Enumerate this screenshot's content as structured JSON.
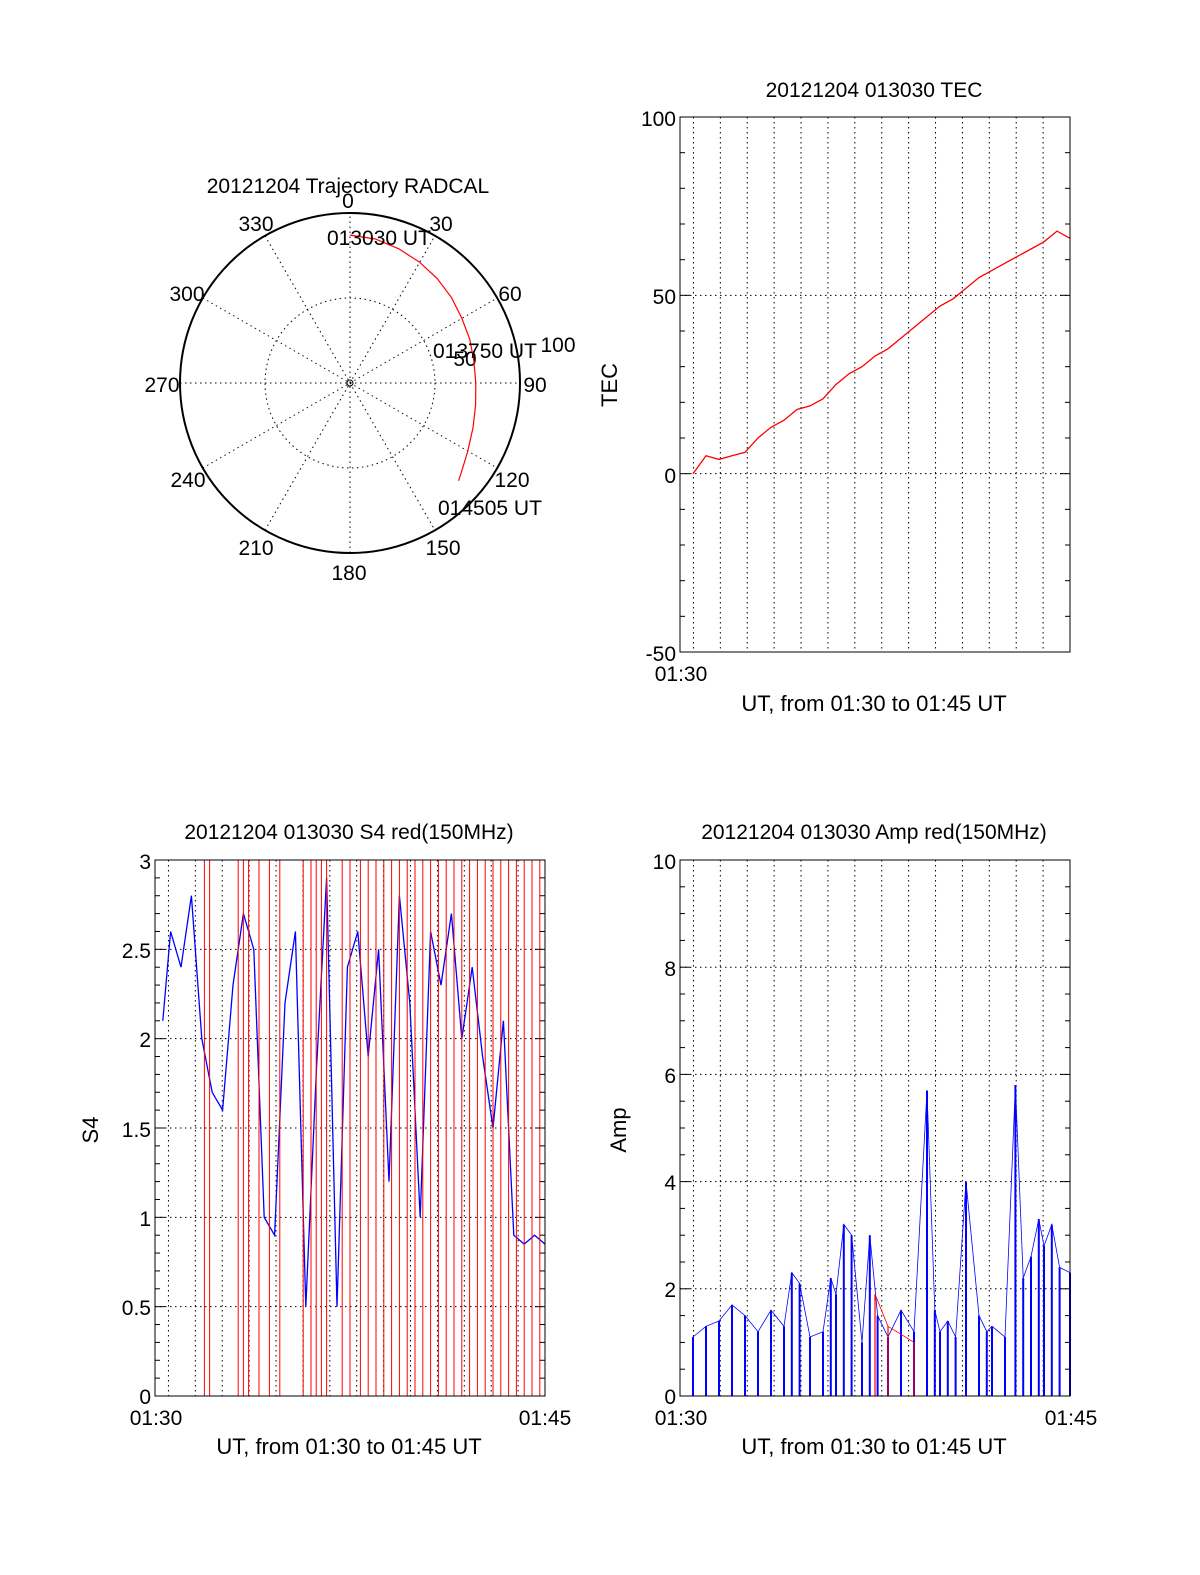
{
  "chart_data": [
    {
      "type": "polar",
      "title": "20121204 Trajectory RADCAL",
      "angle_ticks": [
        "0",
        "30",
        "60",
        "90",
        "120",
        "150",
        "180",
        "210",
        "240",
        "270",
        "300",
        "330"
      ],
      "radial_ticks": [
        "50",
        "100"
      ],
      "rlim": [
        0,
        100
      ],
      "annotations": [
        "013030 UT",
        "013750 UT",
        "014505 UT"
      ],
      "series": [
        {
          "color": "#ff0000",
          "azimuth": [
            0,
            10,
            20,
            30,
            40,
            50,
            60,
            70,
            80,
            90,
            100,
            110,
            120,
            127,
            132
          ],
          "zenith": [
            87,
            86,
            84,
            82,
            80,
            78,
            76,
            75,
            74,
            74,
            75,
            77,
            80,
            83,
            86
          ]
        }
      ]
    },
    {
      "type": "line",
      "title": "20121204 013030 TEC",
      "ylabel": "TEC",
      "xlabel": "UT, from 01:30 to 01:45 UT",
      "xtick_labels": [
        "01:30"
      ],
      "ytick_labels": [
        "-50",
        "0",
        "50",
        "100"
      ],
      "ylim": [
        -50,
        100
      ],
      "xlim_minutes": [
        0,
        15
      ],
      "grid": true,
      "series": [
        {
          "color": "#ff0000",
          "x": [
            0.5,
            1.0,
            1.5,
            2.0,
            2.5,
            3.0,
            3.5,
            4.0,
            4.5,
            5.0,
            5.5,
            6.0,
            6.5,
            7.0,
            7.5,
            8.0,
            8.5,
            9.0,
            9.5,
            10.0,
            10.5,
            11.0,
            11.5,
            12.0,
            12.5,
            13.0,
            13.5,
            14.0,
            14.5,
            15.0
          ],
          "y": [
            0,
            5,
            4,
            5,
            6,
            10,
            13,
            15,
            18,
            19,
            21,
            25,
            28,
            30,
            33,
            35,
            38,
            41,
            44,
            47,
            49,
            52,
            55,
            57,
            59,
            61,
            63,
            65,
            68,
            66
          ]
        }
      ]
    },
    {
      "type": "line",
      "title": "20121204 013030 S4 red(150MHz)",
      "ylabel": "S4",
      "xlabel": "UT, from 01:30 to 01:45 UT",
      "xtick_labels": [
        "01:30",
        "01:45"
      ],
      "ytick_labels": [
        "0",
        "0.5",
        "1",
        "1.5",
        "2",
        "2.5",
        "3"
      ],
      "ylim": [
        0,
        3
      ],
      "xlim_minutes": [
        0,
        15
      ],
      "grid": true,
      "series": [
        {
          "color": "#0000ff",
          "x": [
            0.3,
            0.6,
            1.0,
            1.4,
            1.8,
            2.2,
            2.6,
            3.0,
            3.4,
            3.8,
            4.2,
            4.6,
            5.0,
            5.4,
            5.8,
            6.2,
            6.6,
            7.0,
            7.4,
            7.8,
            8.2,
            8.6,
            9.0,
            9.4,
            9.8,
            10.2,
            10.6,
            11.0,
            11.4,
            11.8,
            12.2,
            12.6,
            13.0,
            13.4,
            13.8,
            14.2,
            14.6,
            15.0
          ],
          "y": [
            2.1,
            2.6,
            2.4,
            2.8,
            2.0,
            1.7,
            1.6,
            2.3,
            2.7,
            2.5,
            1.0,
            0.9,
            2.2,
            2.6,
            0.5,
            1.8,
            2.9,
            0.5,
            2.4,
            2.6,
            1.9,
            2.5,
            1.2,
            2.8,
            2.2,
            1.0,
            2.6,
            2.3,
            2.7,
            2.0,
            2.4,
            1.9,
            1.5,
            2.1,
            0.9,
            0.85,
            0.9,
            0.85
          ]
        },
        {
          "color": "#ff0000",
          "x": [
            1.9,
            2.1,
            3.2,
            3.4,
            3.6,
            4.0,
            4.4,
            4.8,
            5.7,
            6.0,
            6.2,
            6.4,
            6.6,
            7.2,
            7.5,
            7.9,
            8.2,
            8.5,
            8.8,
            9.1,
            9.4,
            9.7,
            10.0,
            10.3,
            10.6,
            10.9,
            11.2,
            11.5,
            11.8,
            12.1,
            12.4,
            12.7,
            13.0,
            13.3,
            13.6,
            13.9,
            14.2,
            14.5,
            14.8,
            15.0
          ],
          "y": [
            3,
            3,
            3,
            3,
            3,
            3,
            3,
            3,
            3,
            3,
            3,
            3,
            3,
            3,
            3,
            3,
            3,
            3,
            3,
            3,
            3,
            3,
            3,
            3,
            3,
            3,
            3,
            3,
            3,
            3,
            3,
            3,
            3,
            3,
            3,
            3,
            3,
            3,
            3,
            3
          ]
        }
      ]
    },
    {
      "type": "line",
      "title": "20121204 013030 Amp red(150MHz)",
      "ylabel": "Amp",
      "xlabel": "UT, from 01:30 to 01:45 UT",
      "xtick_labels": [
        "01:30",
        "01:45"
      ],
      "ytick_labels": [
        "0",
        "2",
        "4",
        "6",
        "8",
        "10"
      ],
      "ylim": [
        0,
        10
      ],
      "xlim_minutes": [
        0,
        15
      ],
      "grid": true,
      "series": [
        {
          "color": "#0000ff",
          "x": [
            0.5,
            1.0,
            1.5,
            2.0,
            2.5,
            3.0,
            3.5,
            4.0,
            4.3,
            4.6,
            5.0,
            5.5,
            5.8,
            6.0,
            6.3,
            6.6,
            7.0,
            7.3,
            7.6,
            8.0,
            8.5,
            9.0,
            9.5,
            9.8,
            10.0,
            10.3,
            10.6,
            11.0,
            11.5,
            11.8,
            12.0,
            12.5,
            12.9,
            13.2,
            13.5,
            13.8,
            14.0,
            14.3,
            14.6,
            15.0
          ],
          "y": [
            1.1,
            1.3,
            1.4,
            1.7,
            1.5,
            1.2,
            1.6,
            1.3,
            2.3,
            2.1,
            1.1,
            1.2,
            2.2,
            1.9,
            3.2,
            3.0,
            1.0,
            3.0,
            1.5,
            1.1,
            1.6,
            1.2,
            5.7,
            1.6,
            1.2,
            1.4,
            1.1,
            4.0,
            1.5,
            1.2,
            1.3,
            1.1,
            5.8,
            2.2,
            2.6,
            3.3,
            2.8,
            3.2,
            2.4,
            2.3
          ]
        },
        {
          "color": "#ff0000",
          "x": [
            7.5,
            8.0,
            9.0
          ],
          "y": [
            1.9,
            1.3,
            1.0
          ]
        }
      ]
    }
  ]
}
